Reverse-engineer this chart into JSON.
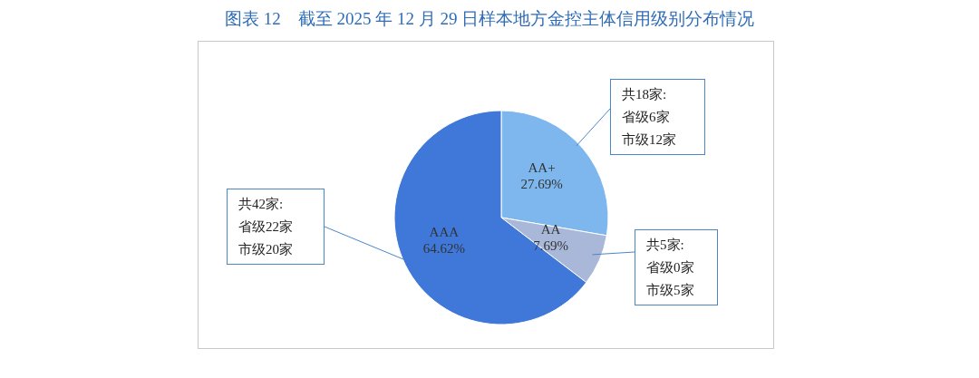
{
  "chart_data": {
    "type": "pie",
    "title": "图表 12　截至 2025 年 12 月 29 日样本地方金控主体信用级别分布情况",
    "categories": [
      "AA+",
      "AA",
      "AAA"
    ],
    "values": [
      27.69,
      7.69,
      64.62
    ],
    "value_labels": [
      "27.69%",
      "7.69%",
      "64.62%"
    ],
    "colors": [
      "#7db7ee",
      "#a9b8d9",
      "#3f78d9"
    ],
    "annotations": [
      "共18家:",
      "省级6家",
      "市级12家",
      "共5家:",
      "省级0家",
      "市级5家",
      "共42家:",
      "省级22家",
      "市级20家"
    ],
    "legend": false
  }
}
